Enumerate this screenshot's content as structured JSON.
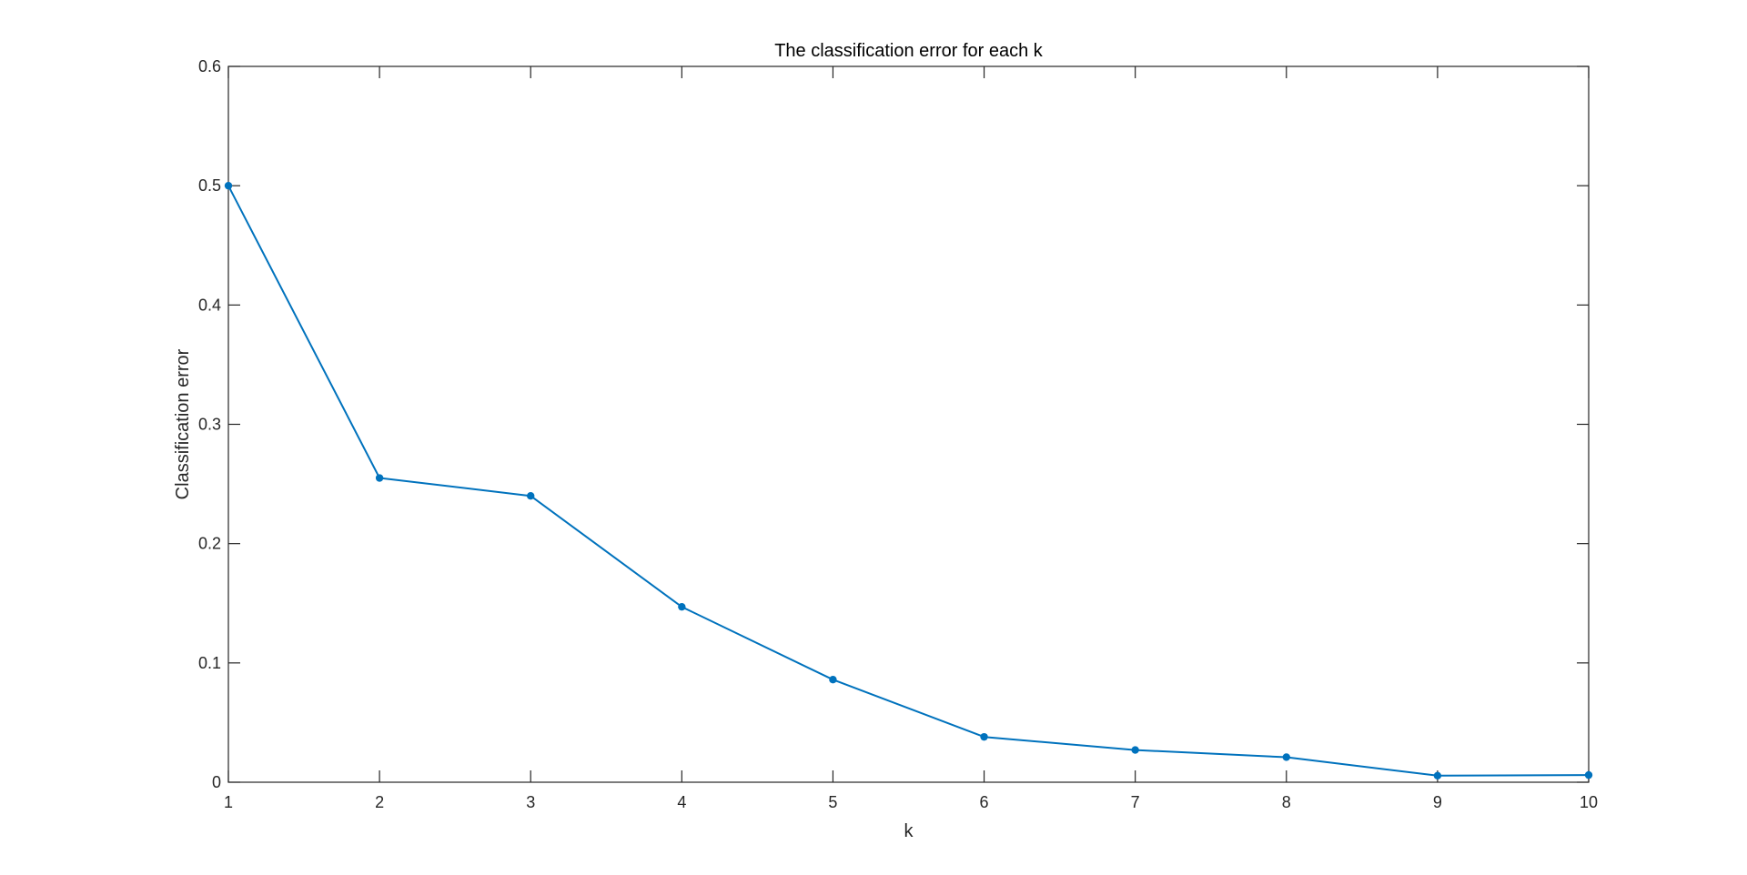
{
  "colors": {
    "series": "#0072BD",
    "axes": "#262626",
    "background": "#ffffff"
  },
  "chart_data": {
    "type": "line",
    "title": "The classification error for each k",
    "xlabel": "k",
    "ylabel": "Classification error",
    "xlim": [
      1,
      10
    ],
    "ylim": [
      0,
      0.6
    ],
    "xticks": [
      "1",
      "2",
      "3",
      "4",
      "5",
      "6",
      "7",
      "8",
      "9",
      "10"
    ],
    "yticks": [
      "0",
      "0.1",
      "0.2",
      "0.3",
      "0.4",
      "0.5",
      "0.6"
    ],
    "grid": false,
    "box": true,
    "marker": "dot",
    "series": [
      {
        "x": [
          1,
          2,
          3,
          4,
          5,
          6,
          7,
          8,
          9,
          10
        ],
        "y": [
          0.5,
          0.255,
          0.24,
          0.147,
          0.086,
          0.038,
          0.027,
          0.021,
          0.0055,
          0.006
        ]
      }
    ]
  }
}
